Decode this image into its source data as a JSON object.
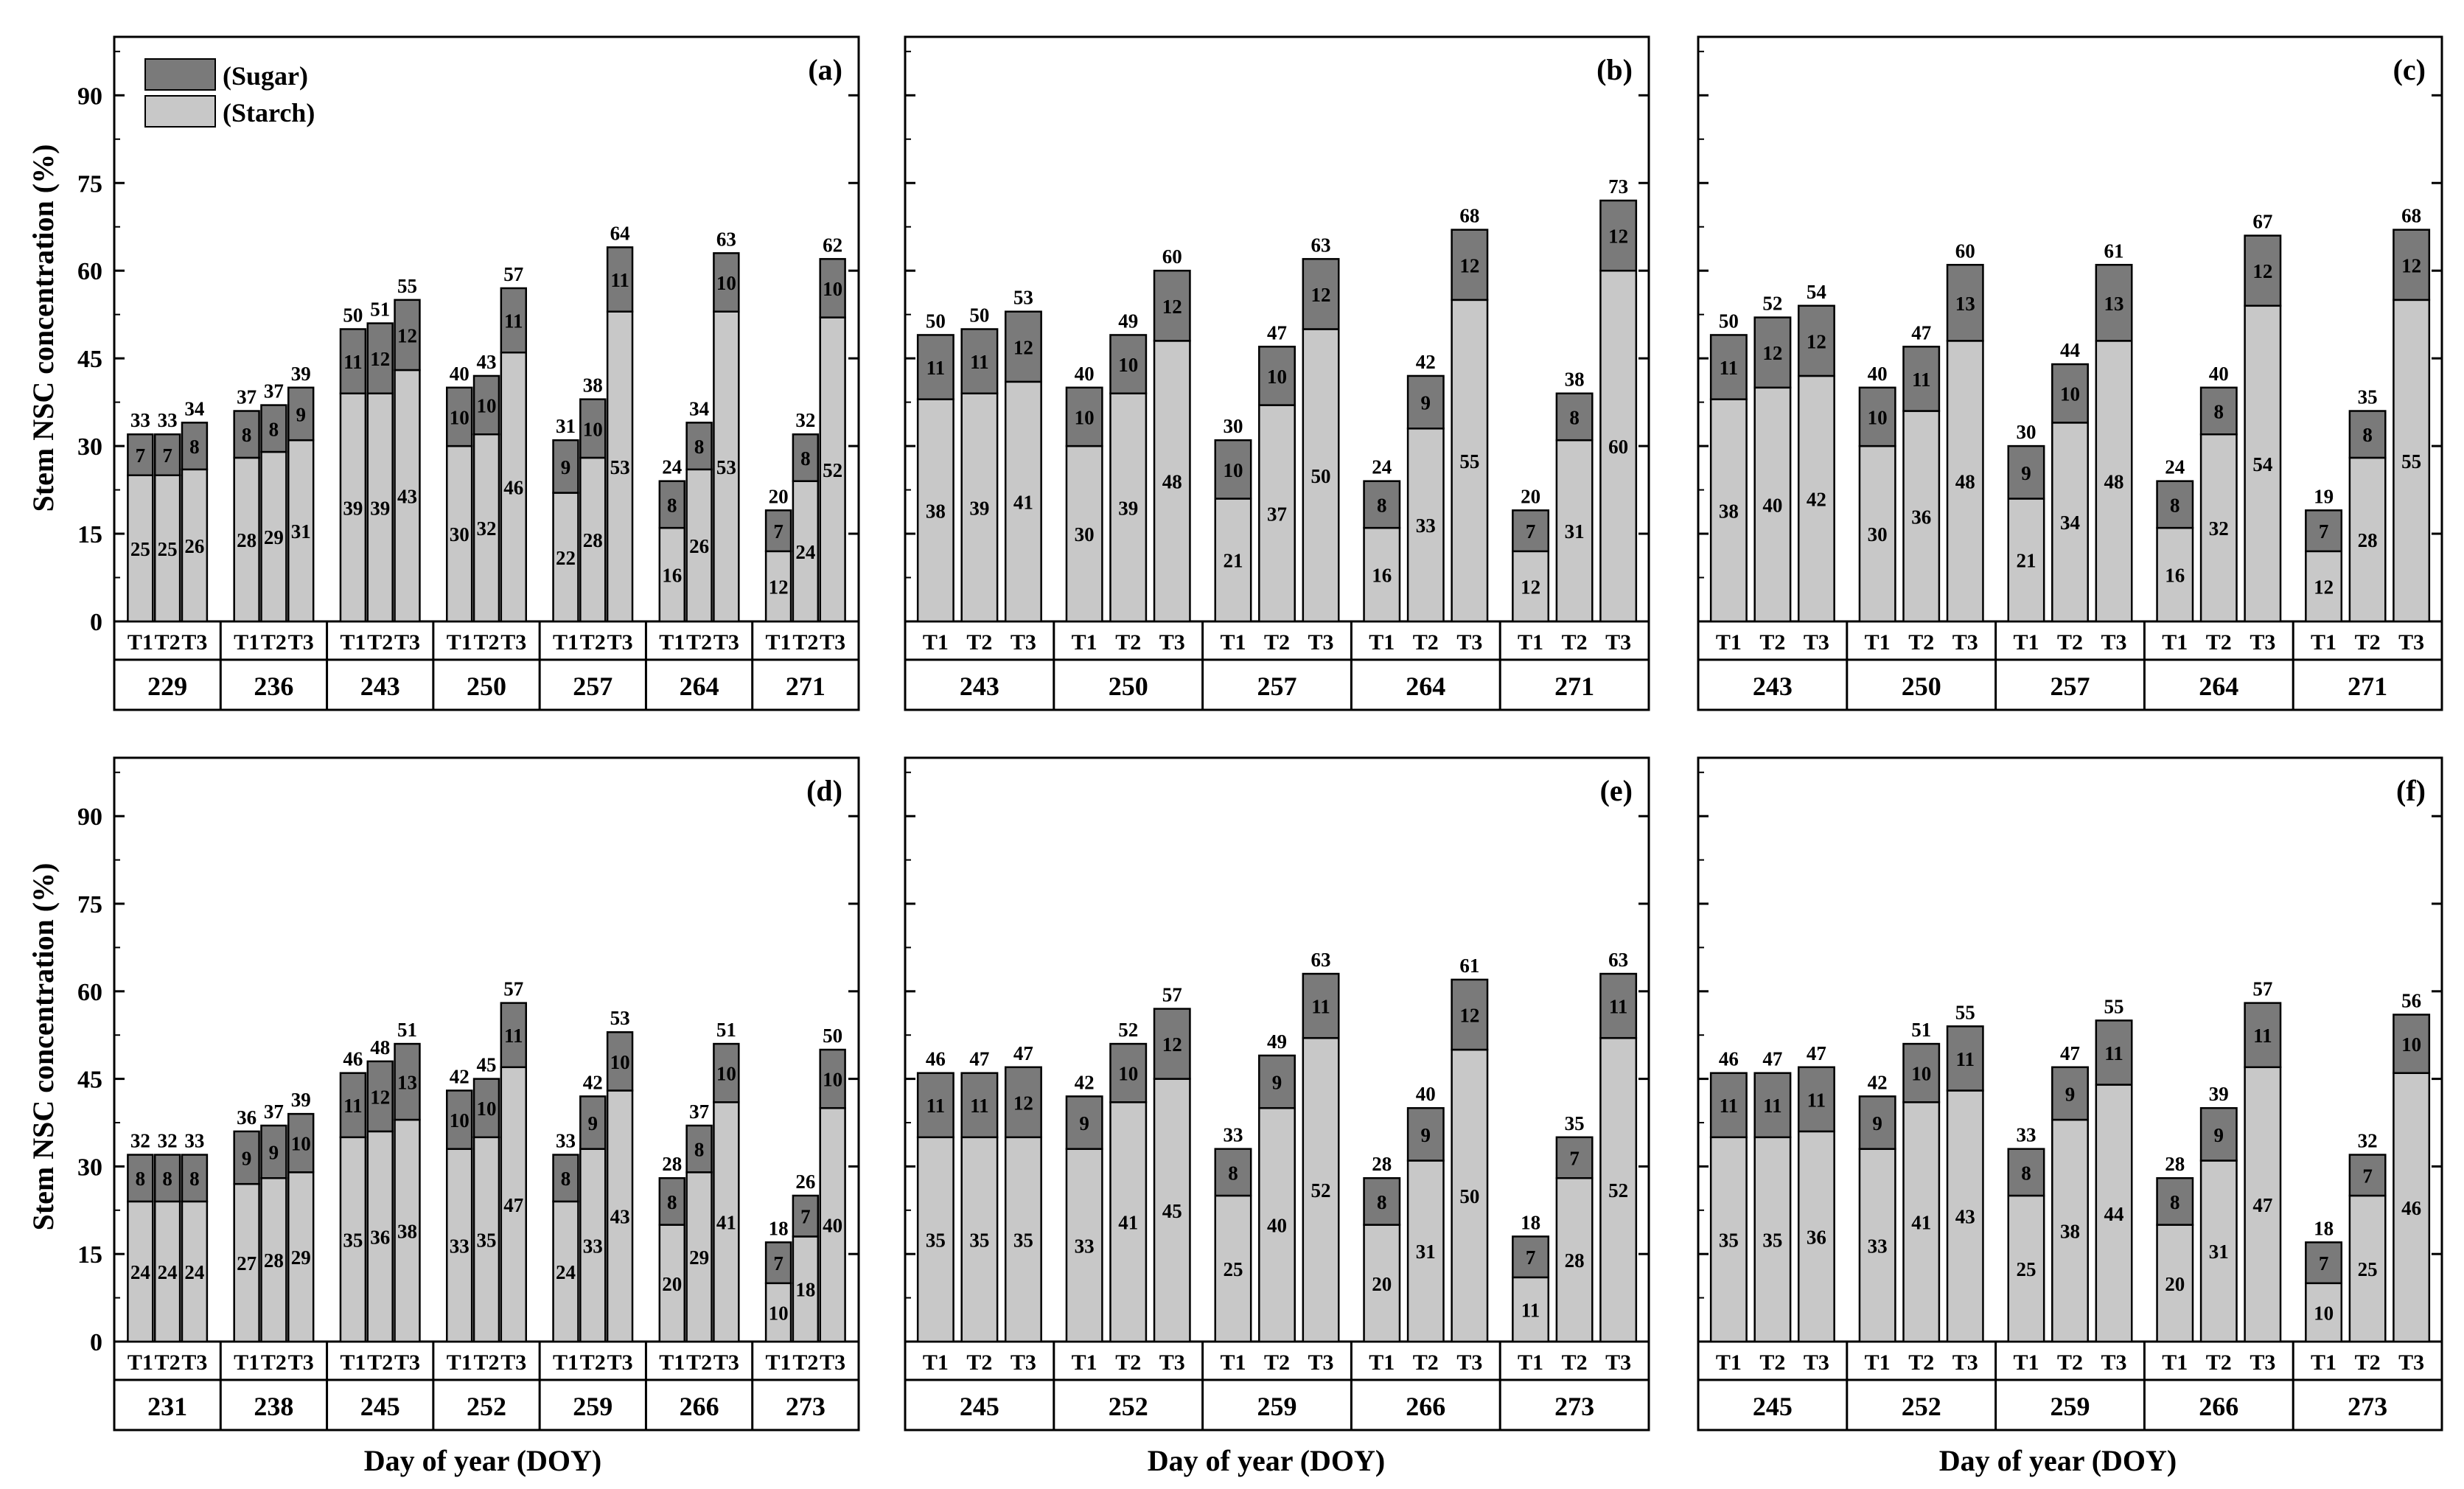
{
  "figure": {
    "y_axis_label": "Stem NSC concentration (%)",
    "x_axis_label": "Day of year (DOY)",
    "legend": {
      "sugar": "(Sugar)",
      "starch": "(Starch)"
    },
    "colors": {
      "sugar": "#7a7a7a",
      "starch": "#c8c8c8",
      "axis": "#000000"
    }
  },
  "chart_data": [
    {
      "type": "stacked-bar",
      "panel": "(a)",
      "yticks": [
        0,
        15,
        30,
        45,
        60,
        75,
        90
      ],
      "ylim": [
        0,
        100
      ],
      "groups": [
        {
          "doy": "229",
          "treatments": [
            "T1",
            "T2",
            "T3"
          ],
          "starch": [
            25,
            25,
            26
          ],
          "sugar": [
            7,
            7,
            8
          ],
          "total": [
            33,
            33,
            34
          ]
        },
        {
          "doy": "236",
          "treatments": [
            "T1",
            "T2",
            "T3"
          ],
          "starch": [
            28,
            29,
            31
          ],
          "sugar": [
            8,
            8,
            9
          ],
          "total": [
            37,
            37,
            39
          ]
        },
        {
          "doy": "243",
          "treatments": [
            "T1",
            "T2",
            "T3"
          ],
          "starch": [
            39,
            39,
            43
          ],
          "sugar": [
            11,
            12,
            12
          ],
          "total": [
            50,
            51,
            55
          ]
        },
        {
          "doy": "250",
          "treatments": [
            "T1",
            "T2",
            "T3"
          ],
          "starch": [
            30,
            32,
            46
          ],
          "sugar": [
            10,
            10,
            11
          ],
          "total": [
            40,
            43,
            57
          ]
        },
        {
          "doy": "257",
          "treatments": [
            "T1",
            "T2",
            "T3"
          ],
          "starch": [
            22,
            28,
            53
          ],
          "sugar": [
            9,
            10,
            11
          ],
          "total": [
            31,
            38,
            64
          ]
        },
        {
          "doy": "264",
          "treatments": [
            "T1",
            "T2",
            "T3"
          ],
          "starch": [
            16,
            26,
            53
          ],
          "sugar": [
            8,
            8,
            10
          ],
          "total": [
            24,
            34,
            63
          ]
        },
        {
          "doy": "271",
          "treatments": [
            "T1",
            "T2",
            "T3"
          ],
          "starch": [
            12,
            24,
            52
          ],
          "sugar": [
            7,
            8,
            10
          ],
          "total": [
            20,
            32,
            62
          ]
        }
      ]
    },
    {
      "type": "stacked-bar",
      "panel": "(b)",
      "yticks": [
        0,
        15,
        30,
        45,
        60,
        75,
        90
      ],
      "ylim": [
        0,
        100
      ],
      "groups": [
        {
          "doy": "243",
          "treatments": [
            "T1",
            "T2",
            "T3"
          ],
          "starch": [
            38,
            39,
            41
          ],
          "sugar": [
            11,
            11,
            12
          ],
          "total": [
            50,
            50,
            53
          ]
        },
        {
          "doy": "250",
          "treatments": [
            "T1",
            "T2",
            "T3"
          ],
          "starch": [
            30,
            39,
            48
          ],
          "sugar": [
            10,
            10,
            12
          ],
          "total": [
            40,
            49,
            60
          ]
        },
        {
          "doy": "257",
          "treatments": [
            "T1",
            "T2",
            "T3"
          ],
          "starch": [
            21,
            37,
            50
          ],
          "sugar": [
            10,
            10,
            12
          ],
          "total": [
            30,
            47,
            63
          ]
        },
        {
          "doy": "264",
          "treatments": [
            "T1",
            "T2",
            "T3"
          ],
          "starch": [
            16,
            33,
            55
          ],
          "sugar": [
            8,
            9,
            12
          ],
          "total": [
            24,
            42,
            68
          ]
        },
        {
          "doy": "271",
          "treatments": [
            "T1",
            "T2",
            "T3"
          ],
          "starch": [
            12,
            31,
            60
          ],
          "sugar": [
            7,
            8,
            12
          ],
          "total": [
            20,
            38,
            73
          ]
        }
      ]
    },
    {
      "type": "stacked-bar",
      "panel": "(c)",
      "yticks": [
        0,
        15,
        30,
        45,
        60,
        75,
        90
      ],
      "ylim": [
        0,
        100
      ],
      "groups": [
        {
          "doy": "243",
          "treatments": [
            "T1",
            "T2",
            "T3"
          ],
          "starch": [
            38,
            40,
            42
          ],
          "sugar": [
            11,
            12,
            12
          ],
          "total": [
            50,
            52,
            54
          ]
        },
        {
          "doy": "250",
          "treatments": [
            "T1",
            "T2",
            "T3"
          ],
          "starch": [
            30,
            36,
            48
          ],
          "sugar": [
            10,
            11,
            13
          ],
          "total": [
            40,
            47,
            60
          ]
        },
        {
          "doy": "257",
          "treatments": [
            "T1",
            "T2",
            "T3"
          ],
          "starch": [
            21,
            34,
            48
          ],
          "sugar": [
            9,
            10,
            13
          ],
          "total": [
            30,
            44,
            61
          ]
        },
        {
          "doy": "264",
          "treatments": [
            "T1",
            "T2",
            "T3"
          ],
          "starch": [
            16,
            32,
            54
          ],
          "sugar": [
            8,
            8,
            12
          ],
          "total": [
            24,
            40,
            67
          ]
        },
        {
          "doy": "271",
          "treatments": [
            "T1",
            "T2",
            "T3"
          ],
          "starch": [
            12,
            28,
            55
          ],
          "sugar": [
            7,
            8,
            12
          ],
          "total": [
            19,
            35,
            68
          ]
        }
      ]
    },
    {
      "type": "stacked-bar",
      "panel": "(d)",
      "yticks": [
        0,
        15,
        30,
        45,
        60,
        75,
        90
      ],
      "ylim": [
        0,
        100
      ],
      "groups": [
        {
          "doy": "231",
          "treatments": [
            "T1",
            "T2",
            "T3"
          ],
          "starch": [
            24,
            24,
            24
          ],
          "sugar": [
            8,
            8,
            8
          ],
          "total": [
            32,
            32,
            33
          ]
        },
        {
          "doy": "238",
          "treatments": [
            "T1",
            "T2",
            "T3"
          ],
          "starch": [
            27,
            28,
            29
          ],
          "sugar": [
            9,
            9,
            10
          ],
          "total": [
            36,
            37,
            39
          ]
        },
        {
          "doy": "245",
          "treatments": [
            "T1",
            "T2",
            "T3"
          ],
          "starch": [
            35,
            36,
            38
          ],
          "sugar": [
            11,
            12,
            13
          ],
          "total": [
            46,
            48,
            51
          ]
        },
        {
          "doy": "252",
          "treatments": [
            "T1",
            "T2",
            "T3"
          ],
          "starch": [
            33,
            35,
            47
          ],
          "sugar": [
            10,
            10,
            11
          ],
          "total": [
            42,
            45,
            57
          ]
        },
        {
          "doy": "259",
          "treatments": [
            "T1",
            "T2",
            "T3"
          ],
          "starch": [
            24,
            33,
            43
          ],
          "sugar": [
            8,
            9,
            10
          ],
          "total": [
            33,
            42,
            53
          ]
        },
        {
          "doy": "266",
          "treatments": [
            "T1",
            "T2",
            "T3"
          ],
          "starch": [
            20,
            29,
            41
          ],
          "sugar": [
            8,
            8,
            10
          ],
          "total": [
            28,
            37,
            51
          ]
        },
        {
          "doy": "273",
          "treatments": [
            "T1",
            "T2",
            "T3"
          ],
          "starch": [
            10,
            18,
            40
          ],
          "sugar": [
            7,
            7,
            10
          ],
          "total": [
            18,
            26,
            50
          ]
        }
      ]
    },
    {
      "type": "stacked-bar",
      "panel": "(e)",
      "yticks": [
        0,
        15,
        30,
        45,
        60,
        75,
        90
      ],
      "ylim": [
        0,
        100
      ],
      "groups": [
        {
          "doy": "245",
          "treatments": [
            "T1",
            "T2",
            "T3"
          ],
          "starch": [
            35,
            35,
            35
          ],
          "sugar": [
            11,
            11,
            12
          ],
          "total": [
            46,
            47,
            47
          ]
        },
        {
          "doy": "252",
          "treatments": [
            "T1",
            "T2",
            "T3"
          ],
          "starch": [
            33,
            41,
            45
          ],
          "sugar": [
            9,
            10,
            12
          ],
          "total": [
            42,
            52,
            57
          ]
        },
        {
          "doy": "259",
          "treatments": [
            "T1",
            "T2",
            "T3"
          ],
          "starch": [
            25,
            40,
            52
          ],
          "sugar": [
            8,
            9,
            11
          ],
          "total": [
            33,
            49,
            63
          ]
        },
        {
          "doy": "266",
          "treatments": [
            "T1",
            "T2",
            "T3"
          ],
          "starch": [
            20,
            31,
            50
          ],
          "sugar": [
            8,
            9,
            12
          ],
          "total": [
            28,
            40,
            61
          ]
        },
        {
          "doy": "273",
          "treatments": [
            "T1",
            "T2",
            "T3"
          ],
          "starch": [
            11,
            28,
            52
          ],
          "sugar": [
            7,
            7,
            11
          ],
          "total": [
            18,
            35,
            63
          ]
        }
      ]
    },
    {
      "type": "stacked-bar",
      "panel": "(f)",
      "yticks": [
        0,
        15,
        30,
        45,
        60,
        75,
        90
      ],
      "ylim": [
        0,
        100
      ],
      "groups": [
        {
          "doy": "245",
          "treatments": [
            "T1",
            "T2",
            "T3"
          ],
          "starch": [
            35,
            35,
            36
          ],
          "sugar": [
            11,
            11,
            11
          ],
          "total": [
            46,
            47,
            47
          ]
        },
        {
          "doy": "252",
          "treatments": [
            "T1",
            "T2",
            "T3"
          ],
          "starch": [
            33,
            41,
            43
          ],
          "sugar": [
            9,
            10,
            11
          ],
          "total": [
            42,
            51,
            55
          ]
        },
        {
          "doy": "259",
          "treatments": [
            "T1",
            "T2",
            "T3"
          ],
          "starch": [
            25,
            38,
            44
          ],
          "sugar": [
            8,
            9,
            11
          ],
          "total": [
            33,
            47,
            55
          ]
        },
        {
          "doy": "266",
          "treatments": [
            "T1",
            "T2",
            "T3"
          ],
          "starch": [
            20,
            31,
            47
          ],
          "sugar": [
            8,
            9,
            11
          ],
          "total": [
            28,
            39,
            57
          ]
        },
        {
          "doy": "273",
          "treatments": [
            "T1",
            "T2",
            "T3"
          ],
          "starch": [
            10,
            25,
            46
          ],
          "sugar": [
            7,
            7,
            10
          ],
          "total": [
            18,
            32,
            56
          ]
        }
      ]
    }
  ]
}
